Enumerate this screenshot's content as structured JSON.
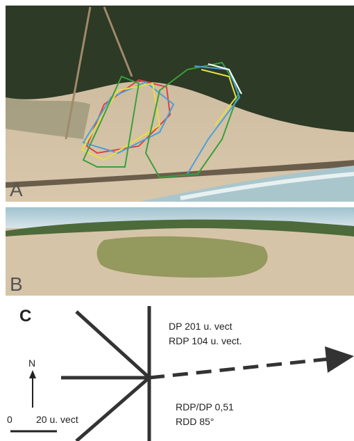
{
  "panels": {
    "a": {
      "label": "A"
    },
    "b": {
      "label": "B"
    },
    "c": {
      "label": "C",
      "north": "N",
      "scale": {
        "zero": "0",
        "length": "20 u. vect"
      },
      "stats": [
        "DP 201 u. vect",
        "RDP 104 u. vect.",
        "RDP/DP 0,51",
        "RDD 85°"
      ]
    }
  }
}
